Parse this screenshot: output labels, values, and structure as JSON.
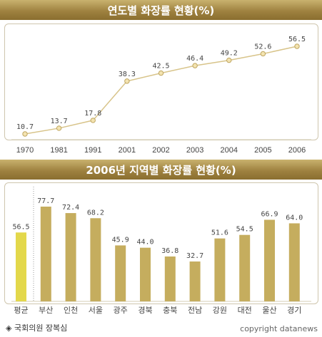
{
  "chart_data": [
    {
      "type": "line",
      "title": "연도별 화장률 현황(%)",
      "categories": [
        "1970",
        "1981",
        "1991",
        "2001",
        "2002",
        "2003",
        "2004",
        "2005",
        "2006"
      ],
      "values": [
        10.7,
        13.7,
        17.8,
        38.3,
        42.5,
        46.4,
        49.2,
        52.6,
        56.5
      ],
      "xlabel": "",
      "ylabel": "",
      "ylim": [
        0,
        60
      ],
      "grid": false,
      "colors": {
        "line": "#d8c48a",
        "marker": "#f3e3b0",
        "text": "#444444"
      }
    },
    {
      "type": "bar",
      "title": "2006년 지역별 화장률 현황(%)",
      "categories": [
        "평균",
        "부산",
        "인천",
        "서울",
        "광주",
        "경북",
        "충북",
        "전남",
        "강원",
        "대전",
        "울산",
        "경기"
      ],
      "values": [
        56.5,
        77.7,
        72.4,
        68.2,
        45.9,
        44.0,
        36.8,
        32.7,
        51.6,
        54.5,
        66.9,
        64.0
      ],
      "value_labels": [
        "56.5",
        "77.7",
        "72.4",
        "68.2",
        "45.9",
        "44.0",
        "36.8",
        "32.7",
        "51.6",
        "54.5",
        "66.9",
        "64.0"
      ],
      "xlabel": "",
      "ylabel": "",
      "ylim": [
        0,
        80
      ],
      "grid": false,
      "colors": {
        "bar": "#c5ad5e",
        "highlight_bar": "#e3d84b",
        "text": "#444444"
      }
    }
  ],
  "footer": {
    "source": "◈ 국회의원 장복심",
    "copyright": "copyright datanews"
  }
}
